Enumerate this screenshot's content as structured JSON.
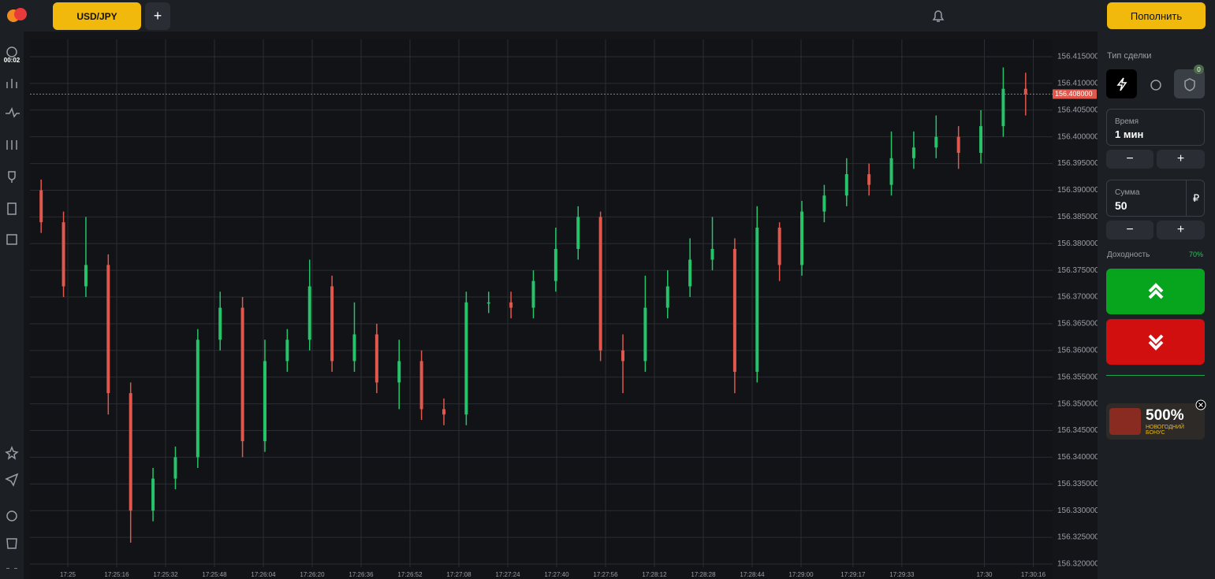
{
  "header": {
    "asset": "USD/JPY",
    "add": "+",
    "deposit": "Пополнить"
  },
  "sidebar": {
    "timer": "00:02"
  },
  "chart_data": {
    "type": "candlestick",
    "xticks": [
      "17:25",
      "17:25:16",
      "17:25:32",
      "17:25:48",
      "17:26:04",
      "17:26:20",
      "17:26:36",
      "17:26:52",
      "17:27:08",
      "17:27:24",
      "17:27:40",
      "17:27:56",
      "17:28:12",
      "17:28:28",
      "17:28:44",
      "17:29:00",
      "17:29:17",
      "17:29:33",
      "17:30",
      "17:30:16"
    ],
    "ylim": [
      156.32,
      156.415
    ],
    "yticks": [
      {
        "value": 156.415,
        "label": "156.415000"
      },
      {
        "value": 156.41,
        "label": "156.410000"
      },
      {
        "value": 156.405,
        "label": "156.405000"
      },
      {
        "value": 156.4,
        "label": "156.400000"
      },
      {
        "value": 156.395,
        "label": "156.395000"
      },
      {
        "value": 156.39,
        "label": "156.390000"
      },
      {
        "value": 156.385,
        "label": "156.385000"
      },
      {
        "value": 156.38,
        "label": "156.380000"
      },
      {
        "value": 156.375,
        "label": "156.375000"
      },
      {
        "value": 156.37,
        "label": "156.370000"
      },
      {
        "value": 156.365,
        "label": "156.365000"
      },
      {
        "value": 156.36,
        "label": "156.360000"
      },
      {
        "value": 156.355,
        "label": "156.355000"
      },
      {
        "value": 156.35,
        "label": "156.350000"
      },
      {
        "value": 156.345,
        "label": "156.345000"
      },
      {
        "value": 156.34,
        "label": "156.340000"
      },
      {
        "value": 156.335,
        "label": "156.335000"
      },
      {
        "value": 156.33,
        "label": "156.330000"
      },
      {
        "value": 156.325,
        "label": "156.325000"
      },
      {
        "value": 156.32,
        "label": "156.320000"
      }
    ],
    "current_price": {
      "value": 156.408,
      "label": "156.408000"
    },
    "up_color": "#25c36a",
    "down_color": "#e2574c",
    "open": [
      156.39,
      156.384,
      156.372,
      156.376,
      156.352,
      156.33,
      156.336,
      156.34,
      156.362,
      156.368,
      156.343,
      156.358,
      156.362,
      156.372,
      156.358,
      156.363,
      156.354,
      156.358,
      156.349,
      156.348,
      156.369,
      156.369,
      156.368,
      156.373,
      156.379,
      156.385,
      156.36,
      156.358,
      156.368,
      156.372,
      156.377,
      156.379,
      156.356,
      156.383,
      156.376,
      156.386,
      156.389,
      156.393,
      156.391,
      156.396,
      156.398,
      156.4,
      156.397,
      156.402,
      156.409
    ],
    "high": [
      156.392,
      156.386,
      156.385,
      156.378,
      156.354,
      156.338,
      156.342,
      156.364,
      156.371,
      156.37,
      156.362,
      156.364,
      156.377,
      156.374,
      156.369,
      156.365,
      156.362,
      156.36,
      156.351,
      156.371,
      156.371,
      156.371,
      156.375,
      156.383,
      156.387,
      156.386,
      156.363,
      156.374,
      156.375,
      156.381,
      156.385,
      156.381,
      156.387,
      156.384,
      156.388,
      156.391,
      156.396,
      156.395,
      156.401,
      156.401,
      156.404,
      156.402,
      156.405,
      156.413,
      156.412
    ],
    "low": [
      156.382,
      156.37,
      156.37,
      156.348,
      156.324,
      156.328,
      156.334,
      156.338,
      156.36,
      156.34,
      156.341,
      156.356,
      156.36,
      156.356,
      156.356,
      156.352,
      156.349,
      156.347,
      156.346,
      156.346,
      156.367,
      156.366,
      156.366,
      156.371,
      156.377,
      156.358,
      156.352,
      156.356,
      156.366,
      156.37,
      156.375,
      156.352,
      156.354,
      156.373,
      156.374,
      156.384,
      156.387,
      156.389,
      156.389,
      156.394,
      156.396,
      156.394,
      156.395,
      156.4,
      156.404
    ],
    "close": [
      156.384,
      156.372,
      156.376,
      156.352,
      156.33,
      156.336,
      156.34,
      156.362,
      156.368,
      156.343,
      156.358,
      156.362,
      156.372,
      156.358,
      156.363,
      156.354,
      156.358,
      156.349,
      156.348,
      156.369,
      156.369,
      156.368,
      156.373,
      156.379,
      156.385,
      156.36,
      156.358,
      156.368,
      156.372,
      156.377,
      156.379,
      156.356,
      156.383,
      156.376,
      156.386,
      156.389,
      156.393,
      156.391,
      156.396,
      156.398,
      156.4,
      156.397,
      156.402,
      156.409,
      156.408
    ]
  },
  "trade_panel": {
    "deal_type": "Тип сделки",
    "badge": "0",
    "time_label": "Время",
    "time_value": "1 мин",
    "minus": "−",
    "plus": "+",
    "amount_label": "Сумма",
    "amount_value": "50",
    "currency": "₽",
    "payout_label": "Доходность",
    "payout_value": "70%",
    "bonus_percent": "500%",
    "bonus_text": "НОВОГОДНИЙ БОНУС"
  }
}
